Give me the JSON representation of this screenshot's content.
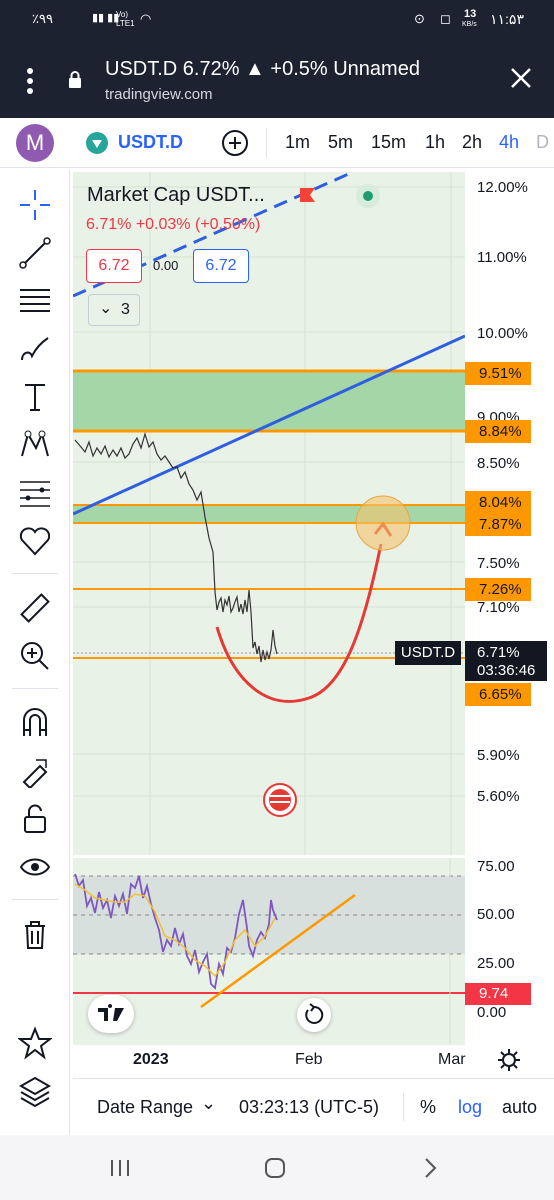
{
  "status": {
    "battery": "٪۹۹",
    "network": "Vo) LTE1",
    "speed": "13",
    "speed_unit": "KB/s",
    "time": "۱۱:۵۳"
  },
  "browser": {
    "title": "USDT.D 6.72% ▲ +0.5% Unnamed",
    "url": "tradingview.com"
  },
  "toolbar": {
    "avatar_letter": "M",
    "symbol": "USDT.D",
    "timeframes": [
      "1m",
      "5m",
      "15m",
      "1h",
      "2h",
      "4h",
      "D"
    ],
    "active_timeframe": "4h"
  },
  "legend": {
    "name": "Market Cap USDT...",
    "change": "6.71%  +0.03% (+0.50%)",
    "sell_price": "6.72",
    "spread": "0.00",
    "buy_price": "6.72",
    "indicators_count": "3"
  },
  "price_scale": {
    "labels": [
      "12.00%",
      "11.00%",
      "10.00%",
      "9.00%",
      "8.50%",
      "7.50%",
      "7.10%",
      "5.90%",
      "5.60%"
    ],
    "tags": [
      "9.51%",
      "8.84%",
      "8.04%",
      "7.87%",
      "7.26%",
      "6.65%"
    ],
    "current_symbol": "USDT.D",
    "current_price": "6.71%",
    "countdown": "03:36:46"
  },
  "oscillator": {
    "labels": [
      "75.00",
      "50.00",
      "25.00",
      "0.00"
    ],
    "tag": "9.74"
  },
  "time_axis": {
    "labels": [
      "2023",
      "Feb",
      "Mar"
    ]
  },
  "bottom": {
    "date_range": "Date Range",
    "clock": "03:23:13 (UTC-5)",
    "percent": "%",
    "log": "log",
    "auto": "auto"
  },
  "colors": {
    "accent": "#2962ff",
    "zone_orange": "#ff9800",
    "zone_green": "#81c784",
    "red_curve": "#e53935",
    "status_bg": "#1c2230"
  }
}
